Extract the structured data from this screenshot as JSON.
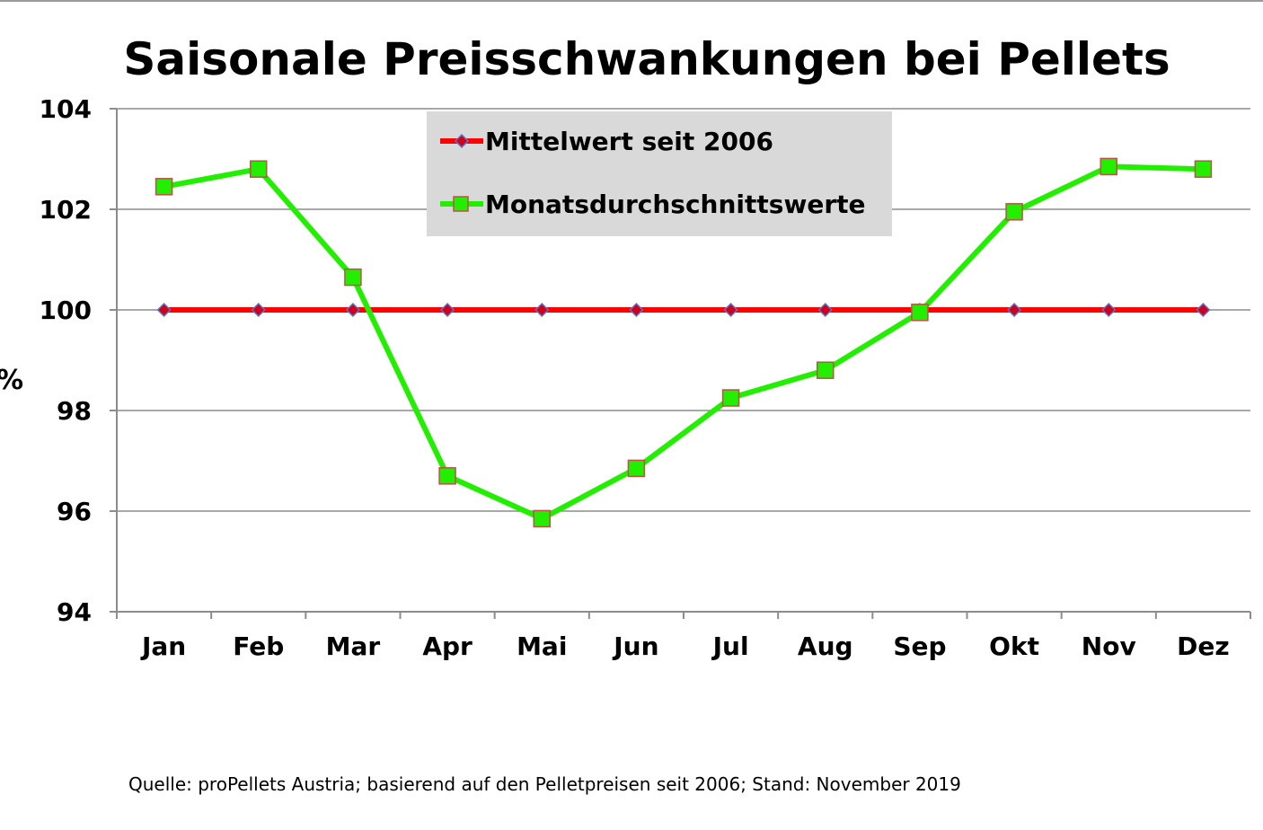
{
  "chart_data": {
    "type": "line",
    "title": "Saisonale Preisschwankungen bei Pellets",
    "xlabel": "",
    "ylabel": "%",
    "ylim": [
      94,
      104
    ],
    "yticks": [
      "94",
      "96",
      "98",
      "100",
      "102",
      "104"
    ],
    "categories": [
      "Jan",
      "Feb",
      "Mar",
      "Apr",
      "Mai",
      "Jun",
      "Jul",
      "Aug",
      "Sep",
      "Okt",
      "Nov",
      "Dez"
    ],
    "grid": true,
    "legend_position": "top-center",
    "series": [
      {
        "name": "Mittelwert seit 2006",
        "values": [
          100,
          100,
          100,
          100,
          100,
          100,
          100,
          100,
          100,
          100,
          100,
          100
        ],
        "color": "#ff0000",
        "marker": "diamond",
        "marker_color": "#d0001a"
      },
      {
        "name": "Monatsdurchschnittswerte",
        "values": [
          102.45,
          102.8,
          100.65,
          96.7,
          95.85,
          96.85,
          98.25,
          98.8,
          99.95,
          101.95,
          102.85,
          102.8
        ],
        "color": "#22ee00",
        "marker": "square",
        "marker_color": "#22ee00"
      }
    ],
    "source": "Quelle: proPellets Austria; basierend auf den Pelletpreisen seit 2006; Stand: November 2019"
  }
}
